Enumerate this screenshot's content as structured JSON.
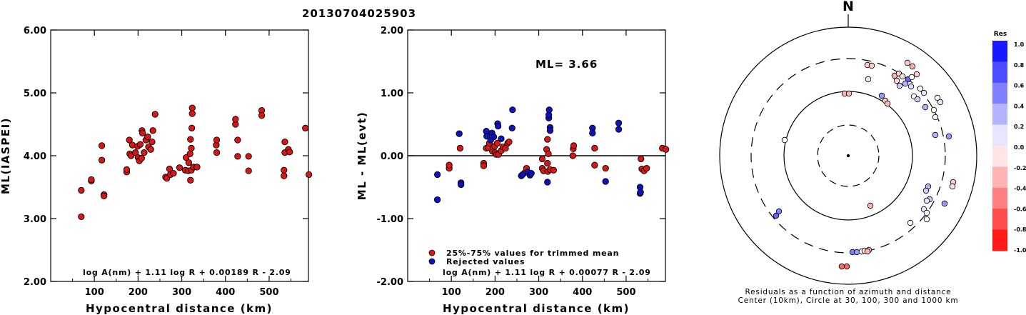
{
  "title": "20130704025903",
  "colors": {
    "red": "#d81616",
    "blue": "#1010c0",
    "stroke": "#000000"
  },
  "chart_data": [
    {
      "type": "scatter",
      "xlabel": "Hypocentral distance (km)",
      "ylabel": "ML(IASPEI)",
      "xlim": [
        0,
        590
      ],
      "ylim": [
        2.0,
        6.0
      ],
      "xticks": [
        "100",
        "200",
        "300",
        "400",
        "500"
      ],
      "yticks": [
        "2.00",
        "3.00",
        "4.00",
        "5.00",
        "6.00"
      ],
      "formula": "log A(nm) + 1.11 log R + 0.00189 R - 2.09",
      "series": [
        {
          "color": "red",
          "points": [
            [
              70,
              3.03
            ],
            [
              70,
              3.45
            ],
            [
              93,
              3.6
            ],
            [
              93,
              3.62
            ],
            [
              117,
              4.16
            ],
            [
              117,
              3.93
            ],
            [
              122,
              3.38
            ],
            [
              122,
              3.36
            ],
            [
              174,
              3.74
            ],
            [
              174,
              3.78
            ],
            [
              180,
              4.25
            ],
            [
              181,
              4.03
            ],
            [
              184,
              4.0
            ],
            [
              187,
              4.17
            ],
            [
              194,
              4.05
            ],
            [
              199,
              4.15
            ],
            [
              200,
              3.97
            ],
            [
              203,
              3.92
            ],
            [
              205,
              4.18
            ],
            [
              208,
              3.96
            ],
            [
              209,
              4.4
            ],
            [
              210,
              4.36
            ],
            [
              214,
              4.05
            ],
            [
              218,
              4.25
            ],
            [
              222,
              4.3
            ],
            [
              224,
              4.14
            ],
            [
              229,
              4.1
            ],
            [
              232,
              4.22
            ],
            [
              234,
              4.4
            ],
            [
              239,
              4.66
            ],
            [
              263,
              3.66
            ],
            [
              266,
              3.64
            ],
            [
              272,
              3.79
            ],
            [
              274,
              3.7
            ],
            [
              281,
              3.72
            ],
            [
              295,
              3.81
            ],
            [
              308,
              3.77
            ],
            [
              310,
              3.97
            ],
            [
              315,
              3.76
            ],
            [
              316,
              3.89
            ],
            [
              319,
              4.03
            ],
            [
              320,
              4.26
            ],
            [
              320,
              3.61
            ],
            [
              322,
              3.77
            ],
            [
              322,
              4.12
            ],
            [
              323,
              4.44
            ],
            [
              324,
              4.67
            ],
            [
              324,
              4.76
            ],
            [
              327,
              3.82
            ],
            [
              334,
              3.82
            ],
            [
              335,
              3.82
            ],
            [
              379,
              4.17
            ],
            [
              380,
              4.25
            ],
            [
              380,
              4.05
            ],
            [
              423,
              4.5
            ],
            [
              423,
              4.58
            ],
            [
              428,
              3.99
            ],
            [
              428,
              4.25
            ],
            [
              453,
              3.99
            ],
            [
              453,
              3.76
            ],
            [
              483,
              4.72
            ],
            [
              483,
              4.64
            ],
            [
              534,
              3.68
            ],
            [
              534,
              3.77
            ],
            [
              536,
              4.22
            ],
            [
              536,
              4.05
            ],
            [
              544,
              4.1
            ],
            [
              547,
              4.06
            ],
            [
              583,
              4.44
            ],
            [
              591,
              3.7
            ]
          ]
        }
      ]
    },
    {
      "type": "scatter",
      "xlabel": "Hypocentral distance (km)",
      "ylabel": "ML - ML(evt)",
      "xlim": [
        0,
        590
      ],
      "ylim": [
        -2.0,
        2.0
      ],
      "xticks": [
        "100",
        "200",
        "300",
        "400",
        "500"
      ],
      "yticks": [
        "-2.00",
        "-1.00",
        "0.00",
        "1.00",
        "2.00"
      ],
      "hline": 0.0,
      "ml_label": "ML= 3.66",
      "formula": "log A(nm) + 1.11 log R + 0.00077 R - 2.09",
      "legend": [
        {
          "color": "red",
          "label": "25%-75% values for trimmed mean"
        },
        {
          "color": "blue",
          "label": "Rejected values"
        }
      ],
      "series": [
        {
          "name": "25%-75% values for trimmed mean",
          "color": "red",
          "points": [
            [
              95,
              -0.2
            ],
            [
              95,
              -0.15
            ],
            [
              120,
              0.12
            ],
            [
              174,
              -0.12
            ],
            [
              174,
              -0.16
            ],
            [
              180,
              0.12
            ],
            [
              184,
              0.13
            ],
            [
              187,
              0.2
            ],
            [
              194,
              0.07
            ],
            [
              199,
              0.15
            ],
            [
              200,
              0.05
            ],
            [
              203,
              0.02
            ],
            [
              205,
              0.2
            ],
            [
              208,
              0.02
            ],
            [
              214,
              0.08
            ],
            [
              218,
              0.14
            ],
            [
              224,
              0.12
            ],
            [
              229,
              0.2
            ],
            [
              232,
              0.22
            ],
            [
              268,
              -0.27
            ],
            [
              272,
              -0.2
            ],
            [
              308,
              -0.2
            ],
            [
              308,
              -0.05
            ],
            [
              311,
              -0.24
            ],
            [
              318,
              0.1
            ],
            [
              320,
              0.26
            ],
            [
              320,
              -0.12
            ],
            [
              321,
              -0.25
            ],
            [
              322,
              0.03
            ],
            [
              326,
              -0.22
            ],
            [
              334,
              -0.23
            ],
            [
              378,
              0.0
            ],
            [
              379,
              0.11
            ],
            [
              380,
              0.16
            ],
            [
              428,
              0.12
            ],
            [
              428,
              -0.15
            ],
            [
              453,
              -0.2
            ],
            [
              534,
              -0.05
            ],
            [
              536,
              -0.21
            ],
            [
              541,
              -0.24
            ],
            [
              547,
              -0.2
            ],
            [
              583,
              0.12
            ],
            [
              591,
              0.1
            ]
          ]
        },
        {
          "name": "Rejected values",
          "color": "blue",
          "points": [
            [
              68,
              -0.7
            ],
            [
              68,
              -0.3
            ],
            [
              118,
              0.35
            ],
            [
              122,
              -0.43
            ],
            [
              122,
              -0.46
            ],
            [
              180,
              0.39
            ],
            [
              181,
              0.31
            ],
            [
              190,
              0.25
            ],
            [
              193,
              0.36
            ],
            [
              197,
              0.3
            ],
            [
              206,
              0.51
            ],
            [
              207,
              0.47
            ],
            [
              214,
              0.27
            ],
            [
              239,
              0.44
            ],
            [
              240,
              0.73
            ],
            [
              260,
              -0.32
            ],
            [
              263,
              -0.3
            ],
            [
              275,
              -0.26
            ],
            [
              280,
              -0.31
            ],
            [
              283,
              -0.28
            ],
            [
              320,
              -0.42
            ],
            [
              323,
              0.6
            ],
            [
              323,
              0.65
            ],
            [
              324,
              0.73
            ],
            [
              326,
              0.45
            ],
            [
              326,
              0.4
            ],
            [
              423,
              0.44
            ],
            [
              423,
              0.36
            ],
            [
              453,
              -0.41
            ],
            [
              483,
              0.52
            ],
            [
              483,
              0.42
            ],
            [
              532,
              -0.5
            ],
            [
              532,
              -0.6
            ],
            [
              533,
              -0.58
            ]
          ]
        }
      ]
    },
    {
      "type": "polar-scatter",
      "north_label": "N",
      "caption_line1": "Residuals as a function of azimuth and distance",
      "caption_line2": "Center (10km), Circle at 30, 100, 300 and 1000 km",
      "colorbar_title": "Res",
      "colorbar_ticks": [
        "1.0",
        "0.8",
        "0.6",
        "0.4",
        "0.2",
        "0.0",
        "-0.2",
        "-0.4",
        "-0.6",
        "-0.8",
        "-1.0"
      ],
      "points": [
        {
          "dx": 27,
          "dy": -127,
          "res": -0.2
        },
        {
          "dx": 33,
          "dy": -126,
          "res": -0.2
        },
        {
          "dx": 28,
          "dy": -107,
          "res": -0.1
        },
        {
          "dx": -5,
          "dy": -87,
          "res": -0.3
        },
        {
          "dx": 1,
          "dy": -87,
          "res": -0.3
        },
        {
          "dx": 83,
          "dy": -130,
          "res": -0.2
        },
        {
          "dx": 90,
          "dy": -125,
          "res": -0.3
        },
        {
          "dx": 96,
          "dy": -114,
          "res": -0.2
        },
        {
          "dx": 65,
          "dy": -112,
          "res": -0.3
        },
        {
          "dx": 71,
          "dy": -115,
          "res": -0.2
        },
        {
          "dx": 76,
          "dy": -111,
          "res": -0.1
        },
        {
          "dx": 68,
          "dy": -105,
          "res": -0.15
        },
        {
          "dx": 84,
          "dy": -107,
          "res": 0.6
        },
        {
          "dx": 72,
          "dy": -98,
          "res": 0.2
        },
        {
          "dx": 80,
          "dy": -101,
          "res": 0.3
        },
        {
          "dx": 88,
          "dy": -97,
          "res": 0.15
        },
        {
          "dx": 89,
          "dy": -110,
          "res": 0.0
        },
        {
          "dx": 101,
          "dy": -94,
          "res": 0.0
        },
        {
          "dx": 106,
          "dy": -88,
          "res": 0.1
        },
        {
          "dx": 47,
          "dy": -84,
          "res": 0.4
        },
        {
          "dx": 52,
          "dy": -77,
          "res": -0.2
        },
        {
          "dx": 55,
          "dy": -73,
          "res": -0.3
        },
        {
          "dx": 92,
          "dy": -83,
          "res": 0.0
        },
        {
          "dx": 97,
          "dy": -79,
          "res": 0.2
        },
        {
          "dx": 108,
          "dy": -68,
          "res": 0.3
        },
        {
          "dx": 125,
          "dy": -81,
          "res": 0.0
        },
        {
          "dx": 129,
          "dy": -75,
          "res": 0.1
        },
        {
          "dx": 120,
          "dy": -64,
          "res": 0.0
        },
        {
          "dx": 122,
          "dy": -54,
          "res": 0.0
        },
        {
          "dx": -89,
          "dy": -22,
          "res": 0.0
        },
        {
          "dx": 122,
          "dy": -29,
          "res": 0.3
        },
        {
          "dx": 141,
          "dy": -27,
          "res": 0.4
        },
        {
          "dx": 147,
          "dy": 37,
          "res": -0.2
        },
        {
          "dx": 146,
          "dy": 43,
          "res": -0.1
        },
        {
          "dx": 112,
          "dy": 43,
          "res": 0.3
        },
        {
          "dx": 109,
          "dy": 49,
          "res": 0.2
        },
        {
          "dx": 114,
          "dy": 61,
          "res": 0.2
        },
        {
          "dx": 110,
          "dy": 63,
          "res": 0.1
        },
        {
          "dx": 135,
          "dy": 67,
          "res": 0.4
        },
        {
          "dx": 106,
          "dy": 75,
          "res": 0.1
        },
        {
          "dx": 110,
          "dy": 80,
          "res": 0.0
        },
        {
          "dx": 110,
          "dy": 89,
          "res": 0.0
        },
        {
          "dx": 87,
          "dy": 94,
          "res": 0.0
        },
        {
          "dx": 31,
          "dy": 70,
          "res": -0.3
        },
        {
          "dx": -97,
          "dy": 78,
          "res": 0.5
        },
        {
          "dx": -101,
          "dy": 84,
          "res": 0.6
        },
        {
          "dx": 6,
          "dy": 135,
          "res": 0.5
        },
        {
          "dx": 12,
          "dy": 135,
          "res": 0.4
        },
        {
          "dx": 19,
          "dy": 134,
          "res": 0.0
        },
        {
          "dx": 23,
          "dy": 133,
          "res": -0.1
        },
        {
          "dx": 29,
          "dy": 132,
          "res": -0.2
        },
        {
          "dx": 27,
          "dy": 134,
          "res": -0.3
        },
        {
          "dx": -2,
          "dy": 155,
          "res": -0.6
        },
        {
          "dx": -9,
          "dy": 155,
          "res": -0.6
        }
      ]
    }
  ]
}
